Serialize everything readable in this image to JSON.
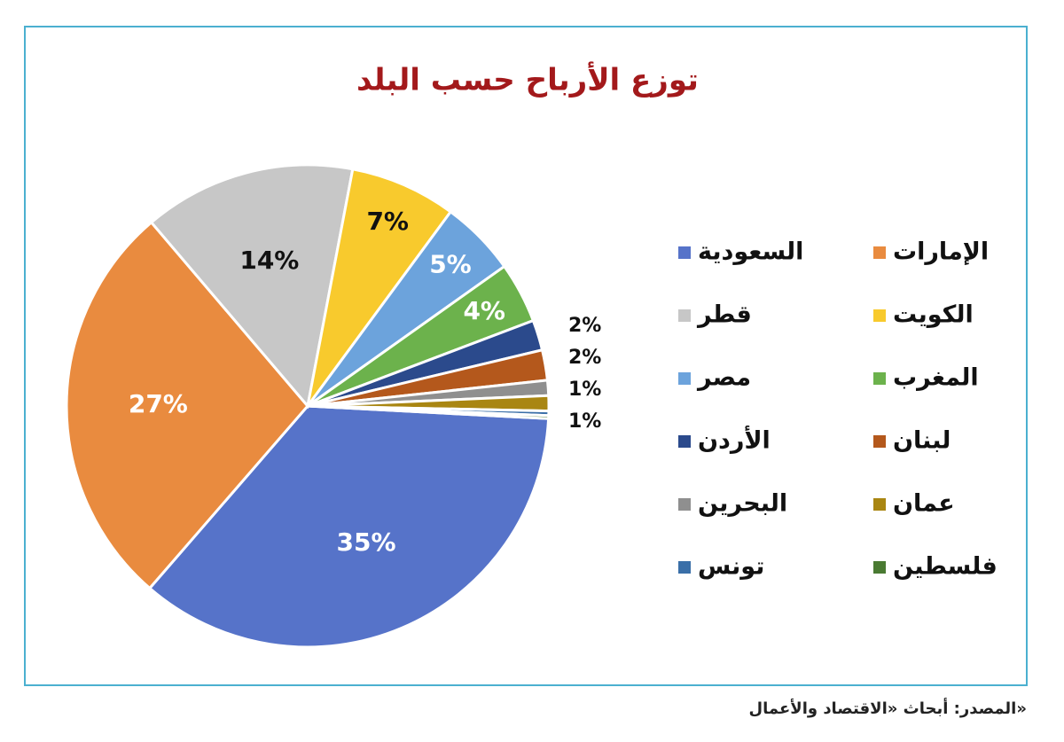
{
  "chart_data": {
    "type": "pie",
    "title": "توزع الأرباح حسب البلد",
    "categories": [
      "السعودية",
      "الإمارات",
      "قطر",
      "الكويت",
      "مصر",
      "المغرب",
      "الأردن",
      "لبنان",
      "البحرين",
      "عمان",
      "تونس",
      "فلسطين"
    ],
    "values": [
      35,
      27,
      14,
      7,
      5,
      4,
      2,
      2,
      1,
      1,
      0.3,
      0.2
    ],
    "value_labels": [
      "35%",
      "27%",
      "14%",
      "7%",
      "5%",
      "4%",
      "2%",
      "2%",
      "1%",
      "1%",
      null,
      null
    ],
    "colors": [
      "#5673c9",
      "#e98b3f",
      "#c7c7c7",
      "#f8ca2d",
      "#6ca3dc",
      "#6cb24c",
      "#2b4a8c",
      "#b4581c",
      "#8f8f8f",
      "#a98612",
      "#3a6fa8",
      "#4a7a32"
    ],
    "source": "المصدر: أبحاث «الاقتصاد والأعمال»"
  }
}
